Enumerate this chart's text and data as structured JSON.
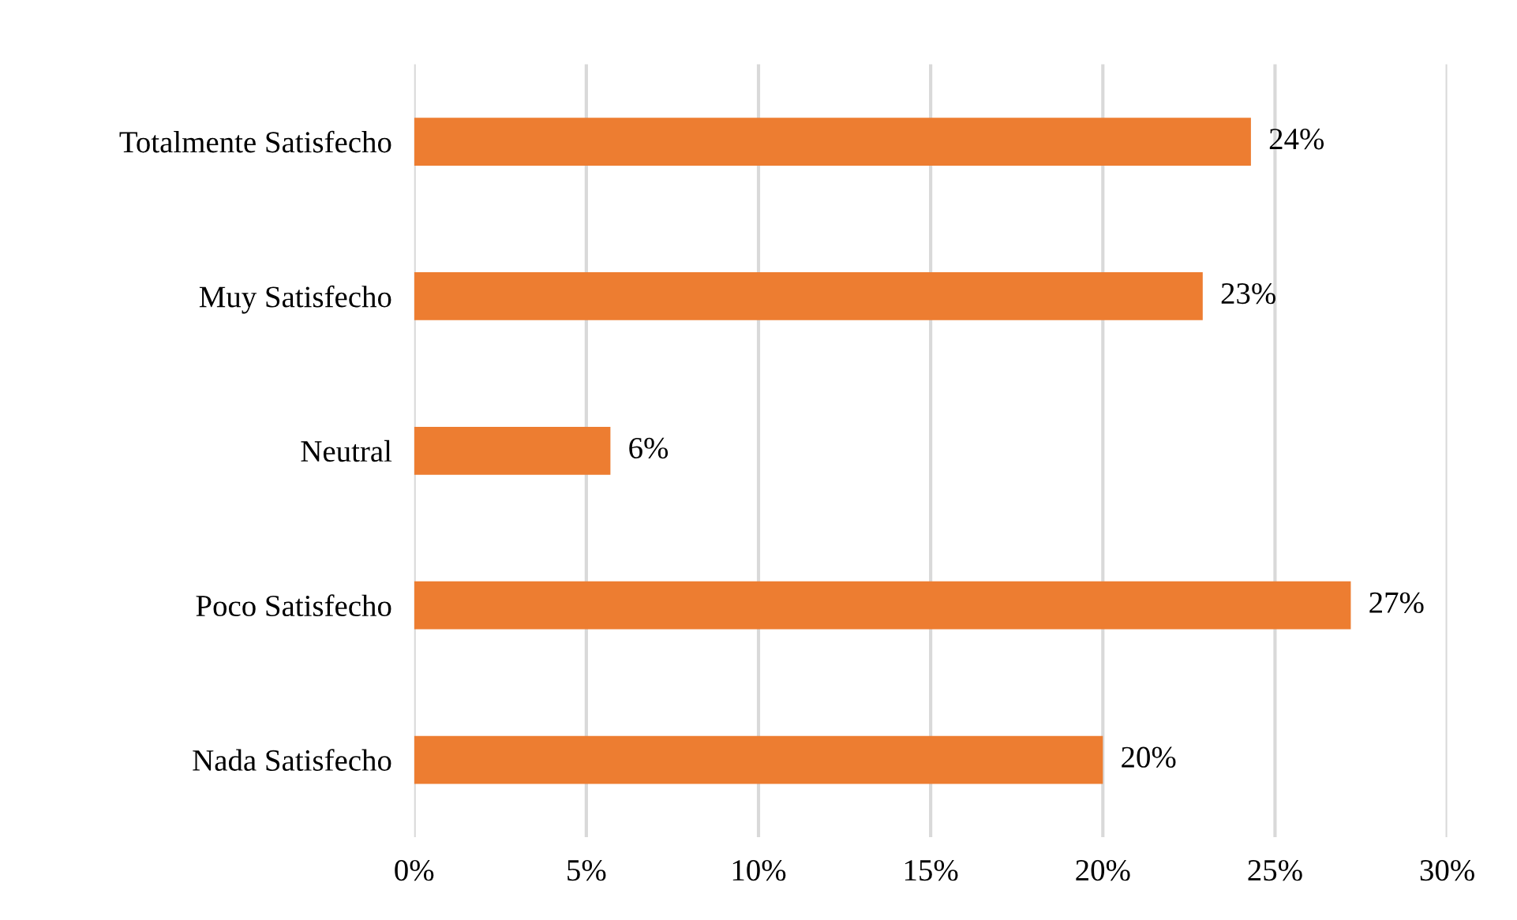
{
  "chart_data": {
    "type": "bar",
    "orientation": "horizontal",
    "categories": [
      "Totalmente Satisfecho",
      "Muy Satisfecho",
      "Neutral",
      "Poco Satisfecho",
      "Nada Satisfecho"
    ],
    "values": [
      24.3,
      22.9,
      5.7,
      27.2,
      20.0
    ],
    "value_labels": [
      "24%",
      "23%",
      "6%",
      "27%",
      "20%"
    ],
    "color": "#ed7d31",
    "xlim": [
      0,
      30
    ],
    "xticks": [
      {
        "value": 0,
        "label": "0%"
      },
      {
        "value": 5,
        "label": "5%"
      },
      {
        "value": 10,
        "label": "10%"
      },
      {
        "value": 15,
        "label": "15%"
      },
      {
        "value": 20,
        "label": "20%"
      },
      {
        "value": 25,
        "label": "25%"
      },
      {
        "value": 30,
        "label": "30%"
      }
    ],
    "grid": "x",
    "legend": false
  }
}
